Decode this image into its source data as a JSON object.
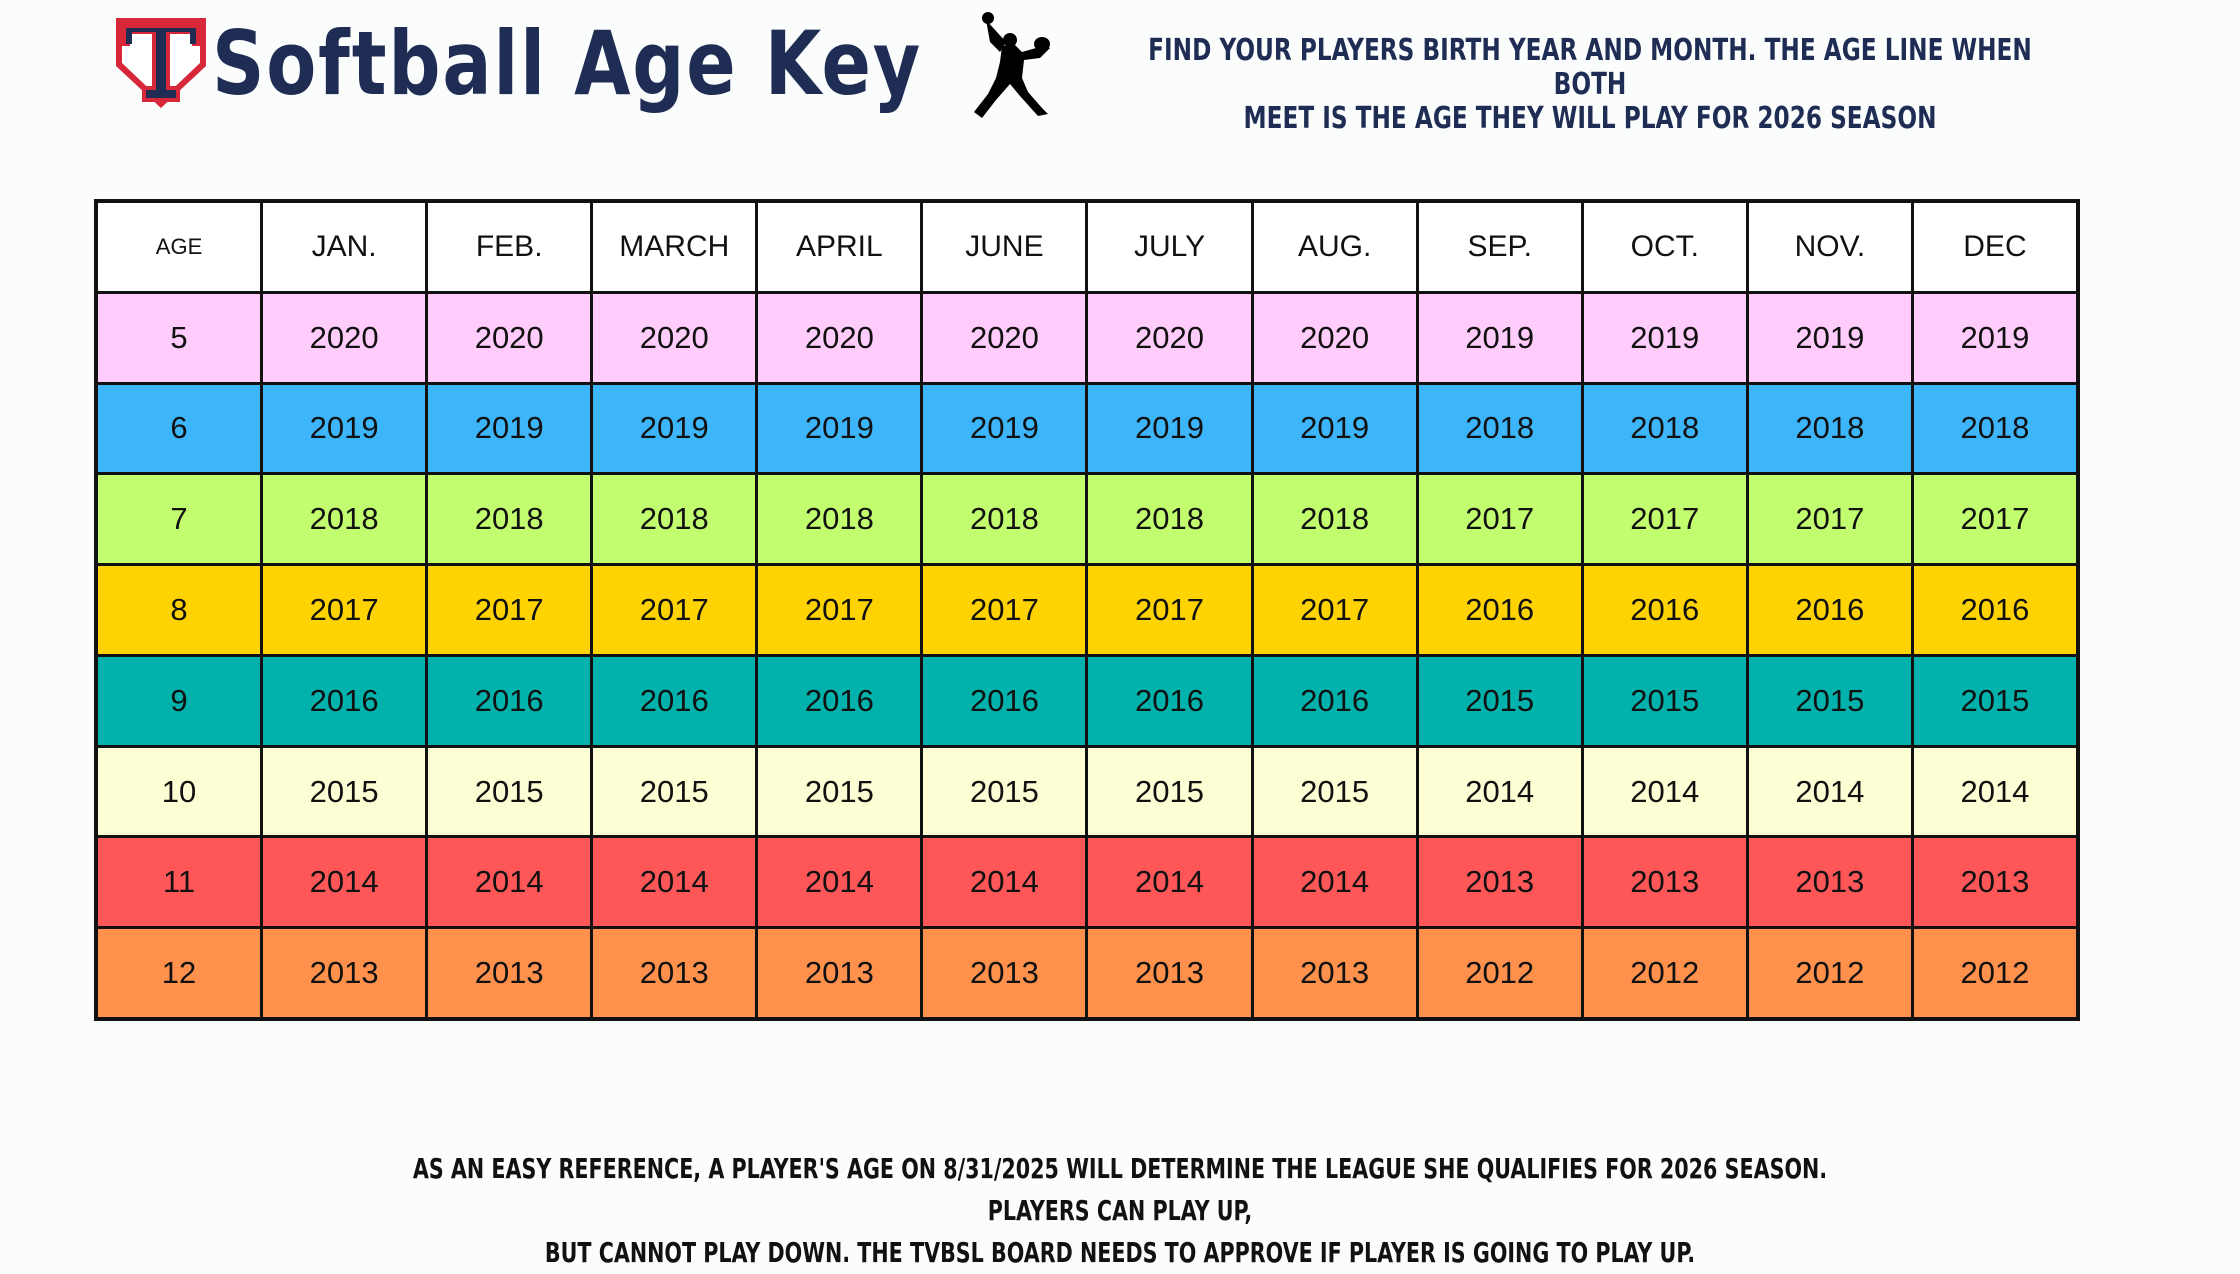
{
  "header": {
    "logo": "tvbsl-t-logo-icon",
    "title": "Softball Age Key",
    "pitcher_icon": "softball-pitcher-silhouette-icon",
    "instructions_line1": "Find your players birth year and month. The age line when both",
    "instructions_line2": "meet is the age they will play for 2026 season"
  },
  "table": {
    "columns": [
      "AGE",
      "JAN.",
      "FEB.",
      "MARCH",
      "APRIL",
      "JUNE",
      "JULY",
      "AUG.",
      "SEP.",
      "OCT.",
      "NOV.",
      "DEC"
    ],
    "rows": [
      {
        "age": "5",
        "color": "#ffccfc",
        "years": [
          "2020",
          "2020",
          "2020",
          "2020",
          "2020",
          "2020",
          "2020",
          "2019",
          "2019",
          "2019",
          "2019"
        ]
      },
      {
        "age": "6",
        "color": "#3db5fb",
        "years": [
          "2019",
          "2019",
          "2019",
          "2019",
          "2019",
          "2019",
          "2019",
          "2018",
          "2018",
          "2018",
          "2018"
        ]
      },
      {
        "age": "7",
        "color": "#c2fd6f",
        "years": [
          "2018",
          "2018",
          "2018",
          "2018",
          "2018",
          "2018",
          "2018",
          "2017",
          "2017",
          "2017",
          "2017"
        ]
      },
      {
        "age": "8",
        "color": "#ffd302",
        "years": [
          "2017",
          "2017",
          "2017",
          "2017",
          "2017",
          "2017",
          "2017",
          "2016",
          "2016",
          "2016",
          "2016"
        ]
      },
      {
        "age": "9",
        "color": "#00b2ab",
        "years": [
          "2016",
          "2016",
          "2016",
          "2016",
          "2016",
          "2016",
          "2016",
          "2015",
          "2015",
          "2015",
          "2015"
        ]
      },
      {
        "age": "10",
        "color": "#fefed4",
        "years": [
          "2015",
          "2015",
          "2015",
          "2015",
          "2015",
          "2015",
          "2015",
          "2014",
          "2014",
          "2014",
          "2014"
        ]
      },
      {
        "age": "11",
        "color": "#ff5757",
        "years": [
          "2014",
          "2014",
          "2014",
          "2014",
          "2014",
          "2014",
          "2014",
          "2013",
          "2013",
          "2013",
          "2013"
        ]
      },
      {
        "age": "12",
        "color": "#ff914d",
        "years": [
          "2013",
          "2013",
          "2013",
          "2013",
          "2013",
          "2013",
          "2013",
          "2012",
          "2012",
          "2012",
          "2012"
        ]
      }
    ]
  },
  "footer": {
    "line1": "As an easy reference, a player's age on 8/31/2025 will determine the league she qualifies for 2026 season.  Players can play up,",
    "line2": "but cannot play down.  The TVBSL board needs to approve If player Is going to play up."
  },
  "colors": {
    "title_navy": "#1f2d55",
    "logo_red": "#d62839",
    "grid_line": "#111111"
  }
}
